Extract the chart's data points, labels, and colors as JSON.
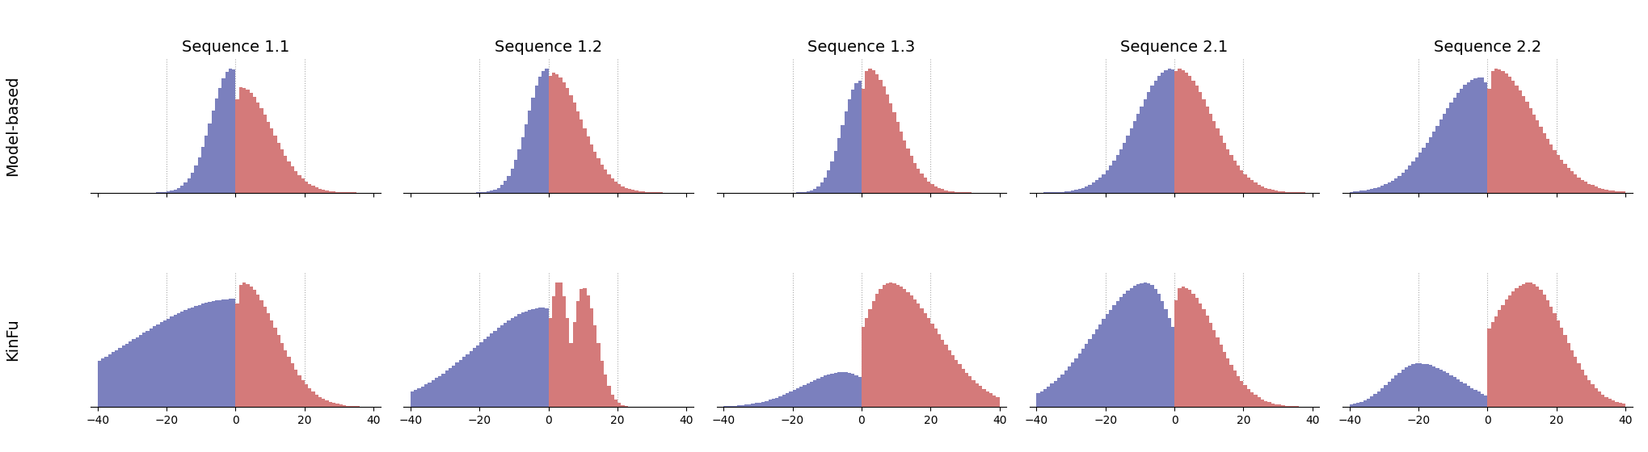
{
  "col_titles": [
    "Sequence 1.1",
    "Sequence 1.2",
    "Sequence 1.3",
    "Sequence 2.1",
    "Sequence 2.2"
  ],
  "row_titles": [
    "Model-based",
    "KinFu"
  ],
  "blue_color": "#7b80be",
  "red_color": "#d47a7a",
  "xlim": [
    -42,
    42
  ],
  "xticks": [
    -40,
    -20,
    0,
    20,
    40
  ],
  "background_color": "#ffffff",
  "grid_color": "#aaaaaa",
  "title_fontsize": 14,
  "tick_fontsize": 10,
  "hparams": {
    "model_based": {
      "seq11": {
        "blue": {
          "peak": -1.0,
          "lstd": 6.0,
          "rstd": 3.5,
          "scale": 1.0
        },
        "red": {
          "peak": 1.5,
          "lstd": 2.0,
          "rstd": 9.0,
          "scale": 0.85
        }
      },
      "seq12": {
        "blue": {
          "peak": -0.5,
          "lstd": 5.5,
          "rstd": 2.5,
          "scale": 1.0
        },
        "red": {
          "peak": 1.0,
          "lstd": 2.0,
          "rstd": 8.5,
          "scale": 0.97
        }
      },
      "seq13": {
        "blue": {
          "peak": -0.5,
          "lstd": 5.0,
          "rstd": 2.5,
          "scale": 0.9
        },
        "red": {
          "peak": 2.0,
          "lstd": 2.5,
          "rstd": 8.0,
          "scale": 1.0
        }
      },
      "seq21": {
        "blue": {
          "peak": -1.0,
          "lstd": 10.0,
          "rstd": 4.0,
          "scale": 1.0
        },
        "red": {
          "peak": 1.0,
          "lstd": 2.5,
          "rstd": 10.0,
          "scale": 1.0
        }
      },
      "seq22": {
        "blue": {
          "peak": -2.0,
          "lstd": 12.0,
          "rstd": 5.0,
          "scale": 0.93
        },
        "red": {
          "peak": 2.0,
          "lstd": 2.5,
          "rstd": 12.0,
          "scale": 1.0
        }
      }
    },
    "kinfu": {
      "seq11": {
        "blue": {
          "peak": -0.5,
          "lstd": 30.0,
          "rstd": 5.0,
          "scale": 0.87
        },
        "red": {
          "peak": 2.0,
          "lstd": 2.5,
          "rstd": 10.0,
          "scale": 1.0
        }
      },
      "seq12": {
        "blue": {
          "peak": -1.0,
          "lstd": 20.0,
          "rstd": 6.0,
          "scale": 0.8
        },
        "red": {
          "peak": 3.0,
          "lstd": 3.0,
          "rstd": 3.0,
          "scale": 1.0,
          "peak2": 10.0,
          "lstd2": 3.0,
          "rstd2": 4.0,
          "scale2": 0.95
        }
      },
      "seq13": {
        "blue": {
          "peak": -5.0,
          "lstd": 12.0,
          "rstd": 8.0,
          "scale": 0.28
        },
        "red": {
          "peak": 8.0,
          "lstd": 8.0,
          "rstd": 14.0,
          "scale": 1.0
        }
      },
      "seq21": {
        "blue": {
          "peak": -8.0,
          "lstd": 15.0,
          "rstd": 8.0,
          "scale": 1.0
        },
        "red": {
          "peak": 2.0,
          "lstd": 3.0,
          "rstd": 10.0,
          "scale": 0.97
        }
      },
      "seq22": {
        "blue": {
          "peak": -20.0,
          "lstd": 8.0,
          "rstd": 12.0,
          "scale": 0.35
        },
        "red": {
          "peak": 12.0,
          "lstd": 12.0,
          "rstd": 10.0,
          "scale": 1.0
        }
      }
    }
  }
}
